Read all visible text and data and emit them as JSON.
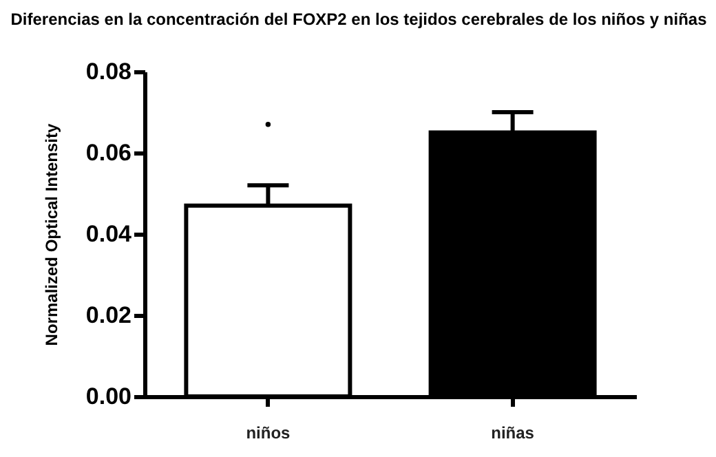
{
  "chart_data": {
    "type": "bar",
    "title": "Diferencias en la concentración del FOXP2 en los tejidos cerebrales de los niños y niñas",
    "ylabel": "Normalized Optical Intensity",
    "categories": [
      "niños",
      "niñas"
    ],
    "series": [
      {
        "type": "bar",
        "colors": [
          "#ffffff",
          "#000000"
        ],
        "values": [
          0.047,
          0.065
        ],
        "errors": [
          [
            0.047,
            0.052
          ],
          [
            0.065,
            0.07
          ]
        ]
      },
      {
        "type": "scatter",
        "color": "#000000",
        "x": [
          "niños"
        ],
        "values": [
          0.067
        ],
        "marker": "circle"
      }
    ],
    "ylim": [
      0,
      0.08
    ],
    "yticks": [
      {
        "value": 0,
        "label": "0.00"
      },
      {
        "value": 0.02,
        "label": "0.02"
      },
      {
        "value": 0.04,
        "label": "0.04"
      },
      {
        "value": 0.06,
        "label": "0.06"
      },
      {
        "value": 0.08,
        "label": "0.08"
      }
    ],
    "grid": false
  }
}
